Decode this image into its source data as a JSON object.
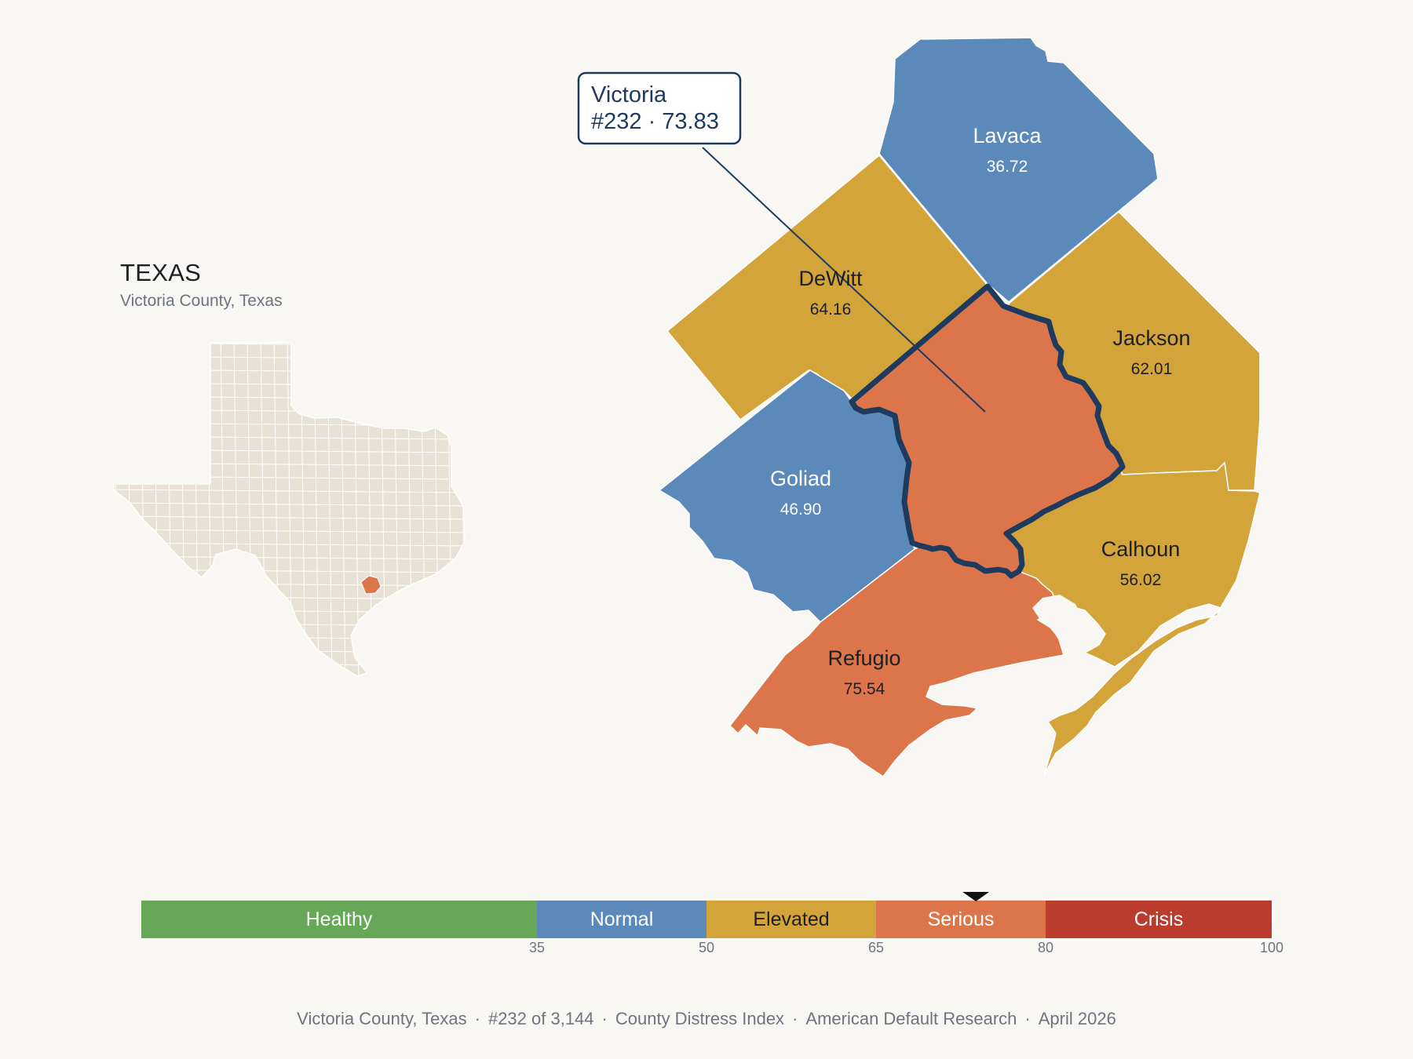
{
  "inset": {
    "title": "TEXAS",
    "subtitle": "Victoria County, Texas"
  },
  "callout": {
    "line1": "Victoria",
    "line2": "#232 · 73.83"
  },
  "counties": [
    {
      "id": "lavaca",
      "name": "Lavaca",
      "value": "36.72",
      "category": "Normal",
      "color": "#5b8aba",
      "label_color": "#ffffff"
    },
    {
      "id": "dewitt",
      "name": "DeWitt",
      "value": "64.16",
      "category": "Elevated",
      "color": "#d3a43a",
      "label_color": "#1c1f24"
    },
    {
      "id": "jackson",
      "name": "Jackson",
      "value": "62.01",
      "category": "Elevated",
      "color": "#d3a43a",
      "label_color": "#1c1f24"
    },
    {
      "id": "goliad",
      "name": "Goliad",
      "value": "46.90",
      "category": "Normal",
      "color": "#5b8aba",
      "label_color": "#ffffff"
    },
    {
      "id": "calhoun",
      "name": "Calhoun",
      "value": "56.02",
      "category": "Elevated",
      "color": "#d3a43a",
      "label_color": "#1c1f24"
    },
    {
      "id": "refugio",
      "name": "Refugio",
      "value": "75.54",
      "category": "Serious",
      "color": "#dd754a",
      "label_color": "#1c1f24"
    },
    {
      "id": "victoria",
      "name": "Victoria",
      "value": "73.83",
      "category": "Serious",
      "color": "#dd754a",
      "highlight_color": "#1e3a5f"
    }
  ],
  "legend": {
    "min": 0,
    "max": 100,
    "current_value": 73.83,
    "bands": [
      {
        "label": "Healthy",
        "from": 0,
        "to": 35,
        "color": "#67a758",
        "text_color": "#ffffff"
      },
      {
        "label": "Normal",
        "from": 35,
        "to": 50,
        "color": "#5b8aba",
        "text_color": "#ffffff"
      },
      {
        "label": "Elevated",
        "from": 50,
        "to": 65,
        "color": "#d3a43a",
        "text_color": "#1c1f24"
      },
      {
        "label": "Serious",
        "from": 65,
        "to": 80,
        "color": "#dd754a",
        "text_color": "#ffffff"
      },
      {
        "label": "Crisis",
        "from": 80,
        "to": 100,
        "color": "#b93c2c",
        "text_color": "#ffffff"
      }
    ],
    "ticks": [
      "35",
      "50",
      "65",
      "80",
      "100"
    ]
  },
  "footer": {
    "parts": [
      "Victoria County, Texas",
      "#232 of 3,144",
      "County Distress Index",
      "American Default Research",
      "April 2026"
    ]
  },
  "colors": {
    "background": "#f9f7f4",
    "state_fill": "#e8e2d6",
    "state_highlight": "#dd754a"
  }
}
